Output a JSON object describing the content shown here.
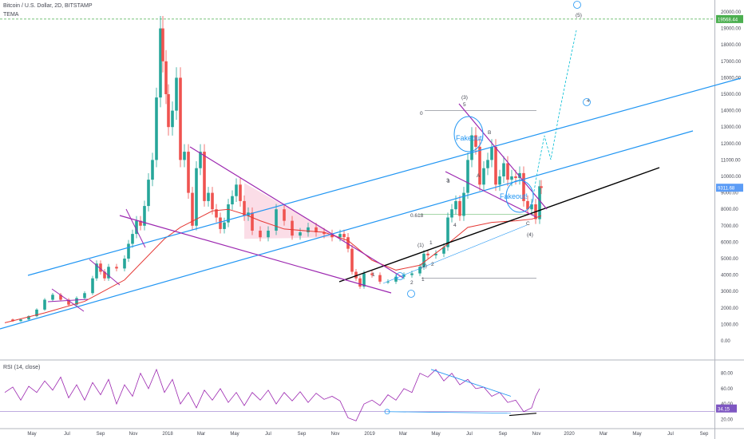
{
  "header": {
    "symbol_line": "Bitcoin / U.S. Dollar, 2D, BITSTAMP",
    "indicator_line": "TEMA"
  },
  "rsi_title": "RSI (14, close)",
  "colors": {
    "up_candle": "#26a69a",
    "down_candle": "#ef5350",
    "trend_line": "#2196f3",
    "channel_line": "#9c27b0",
    "support_line": "#000000",
    "tema_line": "#e53935",
    "rsi_line": "#9c27b0",
    "price_label_bg": "#2962ff",
    "hline_green": "#4caf50",
    "pattern_fill": "#f8bbd0"
  },
  "price_axis": {
    "ticks": [
      "20000.00",
      "19000.00",
      "18000.00",
      "17000.00",
      "16000.00",
      "15000.00",
      "14000.00",
      "13000.00",
      "12000.00",
      "11000.00",
      "10000.00",
      "9000.00",
      "8000.00",
      "7000.00",
      "6000.00",
      "5000.00",
      "4000.00",
      "3000.00",
      "2000.00",
      "1000.00",
      "0.00"
    ],
    "high_label": "19568.44",
    "current_label": "9311.68"
  },
  "rsi_axis": {
    "ticks": [
      "80.00",
      "60.00",
      "40.00",
      "20.00"
    ],
    "current_label": "34.15"
  },
  "time_axis": {
    "ticks": [
      "May",
      "Jul",
      "Sep",
      "Nov",
      "2018",
      "Mar",
      "May",
      "Jul",
      "Sep",
      "Nov",
      "2019",
      "Mar",
      "May",
      "Jul",
      "Sep",
      "Nov",
      "2020",
      "Mar",
      "May",
      "Jul",
      "Sep"
    ]
  },
  "chart_data": {
    "type": "candlestick",
    "title": "Bitcoin / U.S. Dollar, 2D, BITSTAMP",
    "ylim": [
      0,
      20000
    ],
    "price_path": [
      [
        0,
        1300
      ],
      [
        10,
        1200
      ],
      [
        20,
        1300
      ],
      [
        30,
        1500
      ],
      [
        40,
        1900
      ],
      [
        50,
        2500
      ],
      [
        60,
        2800
      ],
      [
        70,
        2500
      ],
      [
        80,
        2200
      ],
      [
        90,
        2600
      ],
      [
        100,
        2900
      ],
      [
        110,
        3800
      ],
      [
        115,
        4700
      ],
      [
        120,
        4200
      ],
      [
        125,
        3800
      ],
      [
        130,
        4500
      ],
      [
        140,
        4400
      ],
      [
        150,
        5000
      ],
      [
        155,
        5900
      ],
      [
        160,
        6500
      ],
      [
        165,
        7300
      ],
      [
        170,
        7000
      ],
      [
        175,
        8200
      ],
      [
        180,
        9800
      ],
      [
        185,
        11000
      ],
      [
        190,
        14800
      ],
      [
        195,
        19000
      ],
      [
        198,
        17000
      ],
      [
        202,
        15000
      ],
      [
        205,
        13000
      ],
      [
        210,
        14000
      ],
      [
        215,
        16000
      ],
      [
        220,
        11000
      ],
      [
        225,
        11500
      ],
      [
        230,
        9000
      ],
      [
        235,
        7000
      ],
      [
        240,
        10500
      ],
      [
        245,
        11500
      ],
      [
        250,
        8500
      ],
      [
        255,
        9000
      ],
      [
        260,
        8000
      ],
      [
        265,
        7500
      ],
      [
        270,
        6800
      ],
      [
        275,
        7200
      ],
      [
        280,
        8300
      ],
      [
        285,
        8800
      ],
      [
        290,
        9500
      ],
      [
        295,
        8500
      ],
      [
        300,
        7600
      ],
      [
        305,
        7800
      ],
      [
        310,
        6700
      ],
      [
        320,
        6300
      ],
      [
        330,
        6700
      ],
      [
        340,
        8000
      ],
      [
        350,
        7300
      ],
      [
        360,
        6400
      ],
      [
        370,
        6600
      ],
      [
        380,
        6900
      ],
      [
        390,
        6600
      ],
      [
        400,
        6500
      ],
      [
        410,
        6300
      ],
      [
        420,
        6500
      ],
      [
        425,
        6300
      ],
      [
        430,
        5600
      ],
      [
        435,
        4200
      ],
      [
        440,
        3800
      ],
      [
        445,
        3300
      ],
      [
        450,
        4100
      ],
      [
        460,
        4000
      ],
      [
        470,
        3600
      ],
      [
        480,
        3600
      ],
      [
        490,
        3900
      ],
      [
        500,
        4000
      ],
      [
        510,
        4100
      ],
      [
        520,
        4500
      ],
      [
        525,
        5300
      ],
      [
        530,
        5200
      ],
      [
        540,
        5300
      ],
      [
        550,
        5700
      ],
      [
        555,
        7500
      ],
      [
        560,
        8000
      ],
      [
        565,
        8500
      ],
      [
        570,
        7600
      ],
      [
        575,
        9000
      ],
      [
        580,
        11000
      ],
      [
        585,
        12500
      ],
      [
        590,
        11800
      ],
      [
        595,
        9500
      ],
      [
        600,
        10500
      ],
      [
        605,
        11000
      ],
      [
        610,
        11800
      ],
      [
        615,
        9500
      ],
      [
        620,
        10000
      ],
      [
        625,
        10800
      ],
      [
        630,
        9800
      ],
      [
        635,
        10000
      ],
      [
        640,
        9900
      ],
      [
        645,
        10200
      ],
      [
        650,
        8500
      ],
      [
        655,
        8000
      ],
      [
        660,
        8300
      ],
      [
        665,
        7400
      ],
      [
        670,
        9400
      ],
      [
        672,
        9300
      ]
    ],
    "tema_path": [
      [
        0,
        1100
      ],
      [
        50,
        1700
      ],
      [
        100,
        2400
      ],
      [
        150,
        3700
      ],
      [
        200,
        6200
      ],
      [
        220,
        6900
      ],
      [
        240,
        7400
      ],
      [
        260,
        7900
      ],
      [
        280,
        8000
      ],
      [
        300,
        7700
      ],
      [
        320,
        7300
      ],
      [
        350,
        6800
      ],
      [
        400,
        6600
      ],
      [
        430,
        6100
      ],
      [
        460,
        4900
      ],
      [
        490,
        4300
      ],
      [
        520,
        4600
      ],
      [
        550,
        5700
      ],
      [
        580,
        6900
      ],
      [
        610,
        7200
      ],
      [
        640,
        7300
      ],
      [
        660,
        7400
      ],
      [
        672,
        7600
      ]
    ],
    "rsi_path": [
      [
        0,
        55
      ],
      [
        10,
        62
      ],
      [
        20,
        45
      ],
      [
        30,
        63
      ],
      [
        40,
        55
      ],
      [
        50,
        70
      ],
      [
        60,
        58
      ],
      [
        70,
        75
      ],
      [
        80,
        48
      ],
      [
        90,
        65
      ],
      [
        100,
        45
      ],
      [
        110,
        68
      ],
      [
        120,
        52
      ],
      [
        130,
        72
      ],
      [
        140,
        40
      ],
      [
        150,
        65
      ],
      [
        160,
        50
      ],
      [
        170,
        80
      ],
      [
        180,
        60
      ],
      [
        190,
        85
      ],
      [
        200,
        55
      ],
      [
        210,
        72
      ],
      [
        220,
        40
      ],
      [
        230,
        55
      ],
      [
        240,
        35
      ],
      [
        250,
        58
      ],
      [
        260,
        45
      ],
      [
        270,
        60
      ],
      [
        280,
        42
      ],
      [
        290,
        55
      ],
      [
        300,
        38
      ],
      [
        310,
        55
      ],
      [
        320,
        45
      ],
      [
        330,
        58
      ],
      [
        340,
        40
      ],
      [
        350,
        55
      ],
      [
        360,
        44
      ],
      [
        370,
        56
      ],
      [
        380,
        42
      ],
      [
        390,
        54
      ],
      [
        400,
        46
      ],
      [
        410,
        50
      ],
      [
        420,
        44
      ],
      [
        430,
        22
      ],
      [
        440,
        18
      ],
      [
        450,
        40
      ],
      [
        460,
        45
      ],
      [
        470,
        38
      ],
      [
        480,
        52
      ],
      [
        490,
        45
      ],
      [
        500,
        60
      ],
      [
        510,
        55
      ],
      [
        520,
        80
      ],
      [
        530,
        75
      ],
      [
        540,
        85
      ],
      [
        550,
        70
      ],
      [
        560,
        80
      ],
      [
        570,
        65
      ],
      [
        580,
        72
      ],
      [
        590,
        60
      ],
      [
        600,
        62
      ],
      [
        610,
        50
      ],
      [
        620,
        55
      ],
      [
        630,
        42
      ],
      [
        640,
        45
      ],
      [
        650,
        30
      ],
      [
        660,
        35
      ],
      [
        665,
        50
      ],
      [
        670,
        60
      ]
    ],
    "rsi_current": 34.15,
    "wave_labels": [
      "(3)",
      "5",
      "3",
      "4",
      "(1)",
      "1",
      "(2)",
      "2",
      "1",
      "2",
      "(4)",
      "C",
      "A",
      "B",
      "3",
      "(5)",
      "4",
      "0",
      "0.618",
      "1"
    ],
    "annotations": [
      "Fakeout!",
      "Fakeout!"
    ]
  }
}
